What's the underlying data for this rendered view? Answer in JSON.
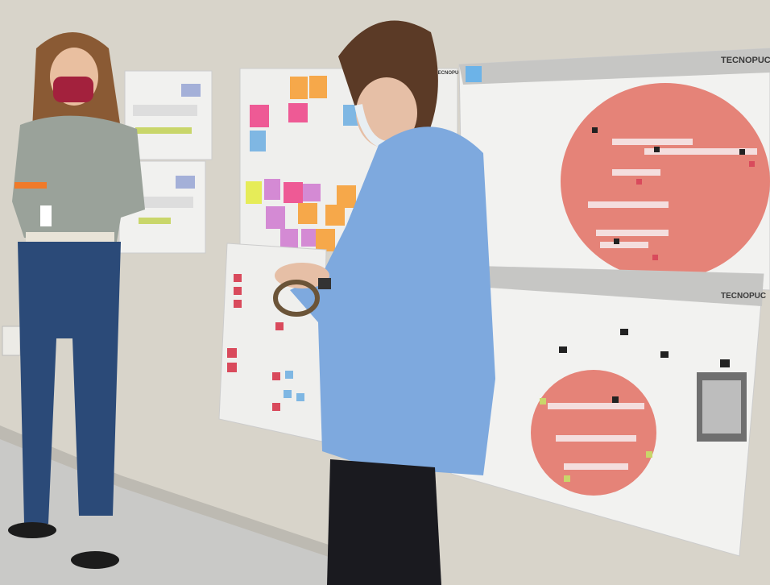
{
  "scene": {
    "posters": {
      "top_right_brand": "TECNOPUC",
      "bottom_right_brand": "TECNOPUC",
      "middle_brand": "TECNOPUC"
    },
    "colors": {
      "wall": "#d8d4ca",
      "poster": "#f2f2f0",
      "circle": "#e58378",
      "sticky_orange": "#f6a84a",
      "sticky_pink": "#ee5a95",
      "sticky_blue": "#7fb7e3",
      "shirt": "#7ea9de"
    }
  }
}
